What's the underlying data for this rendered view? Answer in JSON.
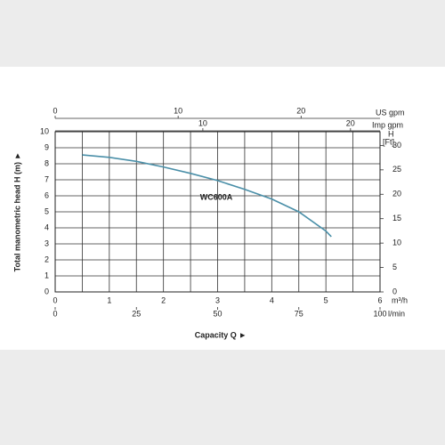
{
  "chart_data": {
    "type": "line",
    "x": [
      0.5,
      1,
      1.5,
      2,
      2.5,
      3,
      3.5,
      4,
      4.5,
      5,
      5.1
    ],
    "series": [
      {
        "name": "WC600A",
        "color": "#4a8fa8",
        "values": [
          8.55,
          8.4,
          8.15,
          7.8,
          7.4,
          6.95,
          6.4,
          5.8,
          5.0,
          3.8,
          3.45
        ]
      }
    ],
    "xlim": [
      0,
      6
    ],
    "xticks": [
      0,
      1,
      2,
      3,
      4,
      5,
      6
    ],
    "x_unit": "m³/h",
    "x_minor": [
      0.5,
      1.5,
      2.5,
      3.5,
      4.5,
      5.5
    ],
    "ylim": [
      0,
      10
    ],
    "yticks": [
      0,
      1,
      2,
      3,
      4,
      5,
      6,
      7,
      8,
      9,
      10
    ],
    "y2lim": [
      0,
      32.81
    ],
    "y2ticks": [
      0,
      5,
      10,
      15,
      20,
      25,
      30
    ],
    "y2_label": "H",
    "y2_unit": "[Ft]",
    "top_axes": [
      {
        "unit": "US gpm",
        "lim": [
          0,
          26.42
        ],
        "ticks": [
          0,
          10,
          20
        ]
      },
      {
        "unit": "Imp gpm",
        "lim": [
          0,
          22
        ],
        "ticks": [
          10,
          20
        ]
      }
    ],
    "bottom_axis2": {
      "unit": "l/min",
      "lim": [
        0,
        100
      ],
      "ticks": [
        0,
        25,
        50,
        75,
        100
      ]
    },
    "xlabel": "Capacity Q  ►",
    "ylabel": "Total manometric head H (m)  ►",
    "grid": true
  }
}
